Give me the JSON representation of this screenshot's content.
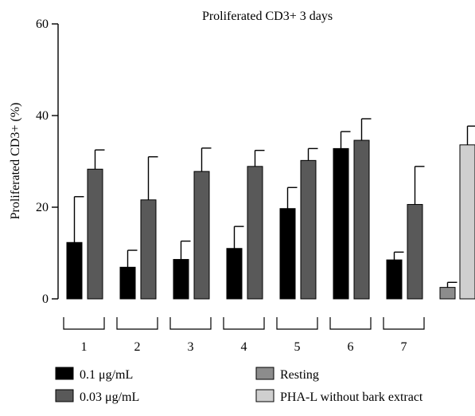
{
  "chart_data": {
    "type": "bar",
    "title": "Proliferated CD3+ 3 days",
    "ylabel": "Proliferated CD3+ (%)",
    "xlabel": "",
    "ylim": [
      0,
      60
    ],
    "yticks": [
      0,
      20,
      40,
      60
    ],
    "groups": [
      "1",
      "2",
      "3",
      "4",
      "5",
      "6",
      "7"
    ],
    "series": [
      {
        "name": "0.1 μg/mL",
        "color": "#000000",
        "values": [
          12.3,
          6.9,
          8.6,
          11.0,
          19.7,
          32.8,
          8.5
        ],
        "errors": [
          10.0,
          3.7,
          4.0,
          4.8,
          4.6,
          3.7,
          1.7
        ]
      },
      {
        "name": "0.03 μg/mL",
        "color": "#595959",
        "values": [
          28.3,
          21.6,
          27.8,
          28.9,
          30.2,
          34.6,
          20.6
        ],
        "errors": [
          4.2,
          9.4,
          5.1,
          3.5,
          2.6,
          4.7,
          8.3
        ]
      }
    ],
    "controls": [
      {
        "name": "Resting",
        "color": "#8c8c8c",
        "value": 2.5,
        "error": 1.1
      },
      {
        "name": "PHA-L without bark extract",
        "color": "#cfcfcf",
        "value": 33.6,
        "error": 4.1
      }
    ],
    "legend_position": "bottom"
  }
}
